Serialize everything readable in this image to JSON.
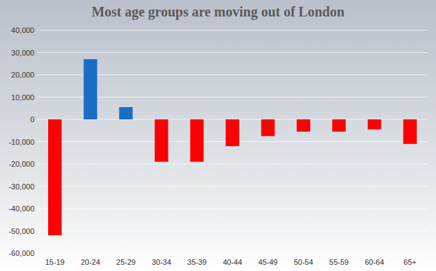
{
  "chart_data": {
    "type": "bar",
    "title": "Most age groups are moving out of London",
    "categories": [
      "15-19",
      "20-24",
      "25-29",
      "30-34",
      "35-39",
      "40-44",
      "45-49",
      "50-54",
      "55-59",
      "60-64",
      "65+"
    ],
    "values": [
      -52000,
      27000,
      5500,
      -19000,
      -19000,
      -12000,
      -7500,
      -5500,
      -5500,
      -4500,
      -11000
    ],
    "colors": [
      "#ff0000",
      "#1a6fc4",
      "#1a6fc4",
      "#ff0000",
      "#ff0000",
      "#ff0000",
      "#ff0000",
      "#ff0000",
      "#ff0000",
      "#ff0000",
      "#ff0000"
    ],
    "ylim": [
      -60000,
      40000
    ],
    "yticks": [
      {
        "value": -60000,
        "label": "-60,000"
      },
      {
        "value": -50000,
        "label": "-50,000"
      },
      {
        "value": -40000,
        "label": "-40,000"
      },
      {
        "value": -30000,
        "label": "-30,000"
      },
      {
        "value": -20000,
        "label": "-20,000"
      },
      {
        "value": -10000,
        "label": "-10,000"
      },
      0,
      {
        "value": 10000,
        "label": "10,000"
      },
      {
        "value": 20000,
        "label": "20,000"
      },
      {
        "value": 30000,
        "label": "30,000"
      },
      {
        "value": 40000,
        "label": "40,000"
      }
    ],
    "grid": true
  }
}
